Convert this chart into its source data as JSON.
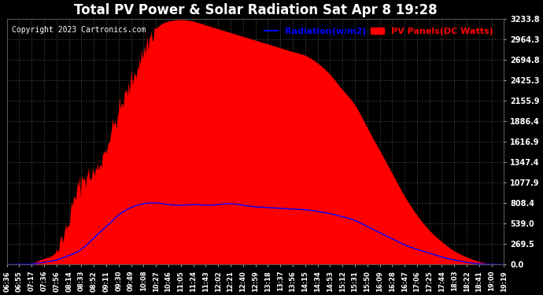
{
  "title": "Total PV Power & Solar Radiation Sat Apr 8 19:28",
  "copyright": "Copyright 2023 Cartronics.com",
  "legend_radiation": "Radiation(w/m2)",
  "legend_pv": "PV Panels(DC Watts)",
  "bg_color": "#000000",
  "plot_bg_color": "#000000",
  "title_color": "#ffffff",
  "copyright_color": "#ffffff",
  "grid_color": "#555555",
  "radiation_color": "#0000ff",
  "pv_color": "#ff0000",
  "yticks": [
    0.0,
    269.5,
    539.0,
    808.4,
    1077.9,
    1347.4,
    1616.9,
    1886.4,
    2155.9,
    2425.3,
    2694.8,
    2964.3,
    3233.8
  ],
  "ytick_color": "#ffffff",
  "xtick_color": "#ffffff",
  "xtick_labels": [
    "06:36",
    "06:55",
    "07:17",
    "07:36",
    "07:56",
    "08:14",
    "08:33",
    "08:52",
    "09:11",
    "09:30",
    "09:49",
    "10:08",
    "10:27",
    "10:46",
    "11:05",
    "11:24",
    "11:43",
    "12:02",
    "12:21",
    "12:40",
    "12:59",
    "13:18",
    "13:37",
    "13:56",
    "14:15",
    "14:34",
    "14:53",
    "15:12",
    "15:31",
    "15:50",
    "16:09",
    "16:28",
    "16:47",
    "17:06",
    "17:25",
    "17:44",
    "18:03",
    "18:22",
    "18:41",
    "19:00",
    "19:19"
  ],
  "ymax": 3233.8,
  "ymin": 0.0
}
